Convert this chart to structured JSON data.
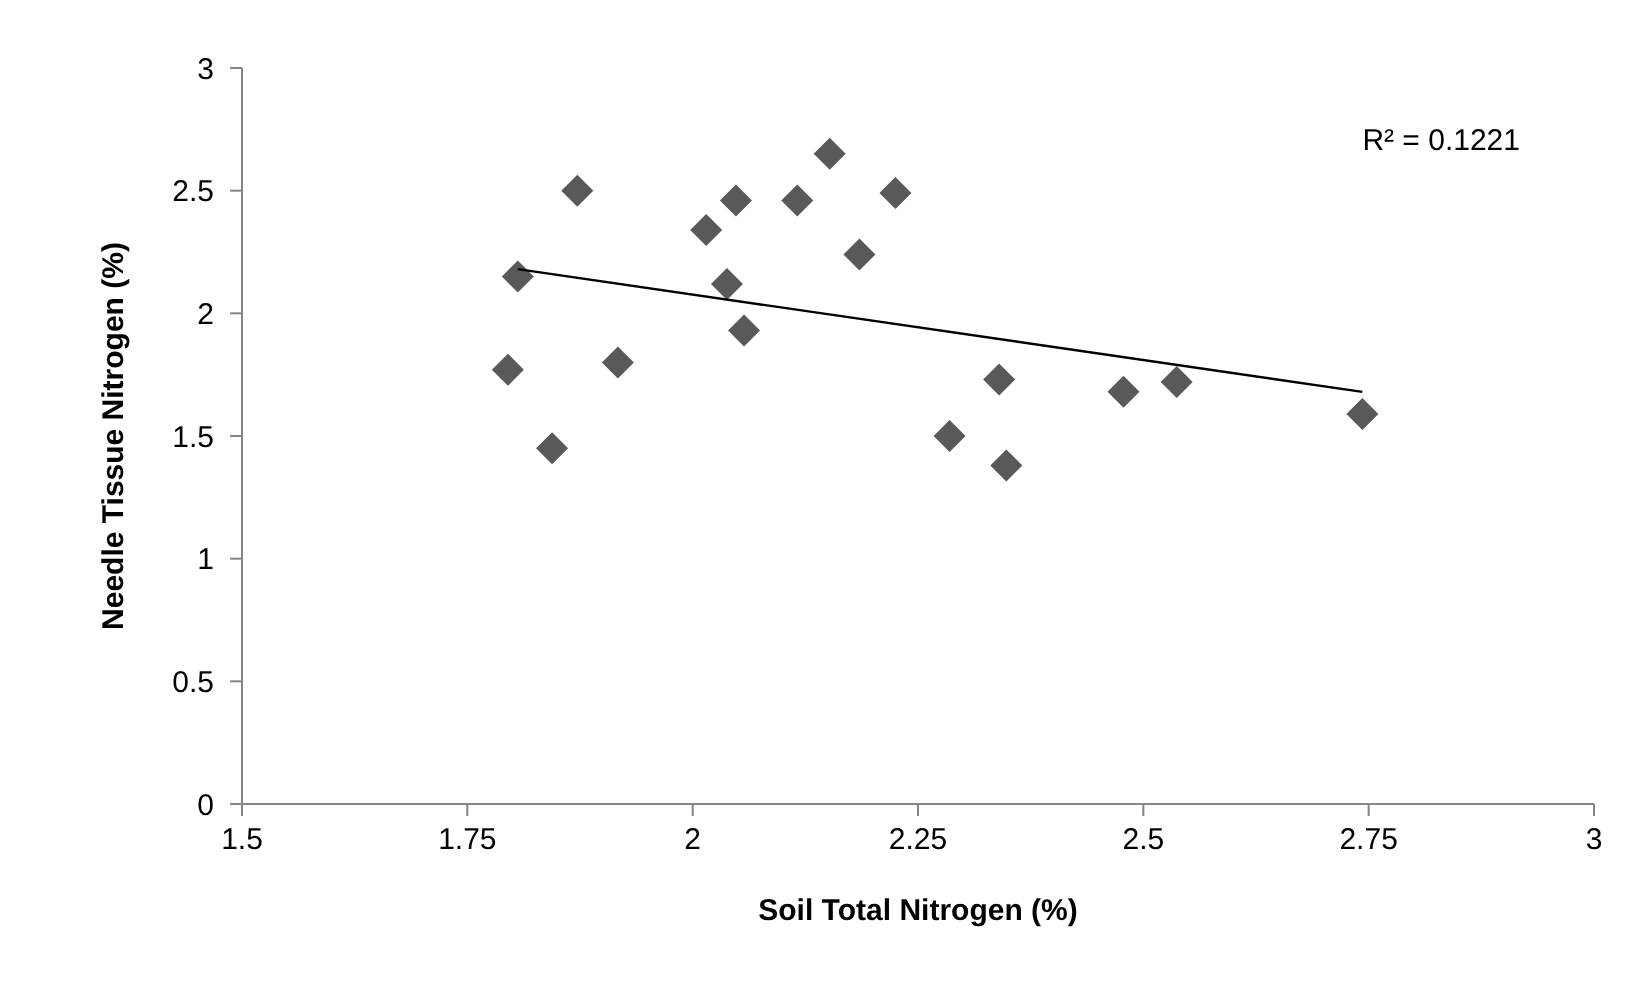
{
  "chart_data": {
    "type": "scatter",
    "xlabel": "Soil Total Nitrogen (%)",
    "ylabel": "Needle Tissue Nitrogen (%)",
    "annotations": [
      "R² = 0.1221"
    ],
    "series": [
      {
        "color": "#595959",
        "marker": "diamond",
        "x": [
          1.795,
          1.806,
          1.844,
          1.872,
          1.917,
          2.015,
          2.038,
          2.048,
          2.057,
          2.116,
          2.152,
          2.185,
          2.225,
          2.285,
          2.34,
          2.348,
          2.478,
          2.537,
          2.743
        ],
        "values": [
          1.77,
          2.15,
          1.45,
          2.5,
          1.8,
          2.34,
          2.12,
          2.46,
          1.93,
          2.46,
          2.65,
          2.24,
          2.49,
          1.5,
          1.73,
          1.38,
          1.68,
          1.72,
          1.59
        ]
      },
      {
        "type": "line",
        "color": "#000000",
        "marker": "none",
        "line_style": "solid",
        "x": [
          1.806,
          2.743
        ],
        "values": [
          2.18,
          1.68
        ]
      }
    ],
    "xlim": [
      1.5,
      3
    ],
    "xticks": [
      1.5,
      1.75,
      2,
      2.25,
      2.5,
      2.75,
      3
    ],
    "ylim": [
      0,
      3
    ],
    "yticks": [
      0,
      0.5,
      1,
      1.5,
      2,
      2.5,
      3
    ],
    "grid": false
  }
}
